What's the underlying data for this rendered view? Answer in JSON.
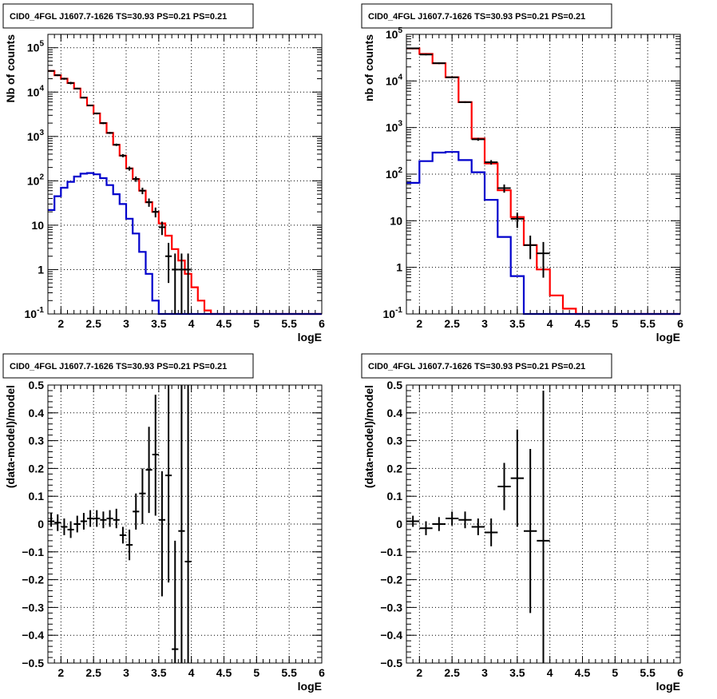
{
  "colors": {
    "data": "#000000",
    "total_model": "#ff0000",
    "source_model": "#0000cc",
    "grid": "#000000",
    "background": "#ffffff"
  },
  "chart_data": [
    {
      "type": "line",
      "title": "CID0_4FGL J1607.7-1626 TS=30.93 PS=0.21 PS=0.21",
      "xlabel": "logE",
      "ylabel": "Nb of counts",
      "xlim": [
        1.8,
        6
      ],
      "ylim": [
        0.1,
        200000
      ],
      "yscale": "log",
      "grid": true,
      "x_ticks": [
        2,
        2.5,
        3,
        3.5,
        4,
        4.5,
        5,
        5.5,
        6
      ],
      "x_tick_labels": [
        "2",
        "2.5",
        "3",
        "3.5",
        "4",
        "4.5",
        "5",
        "5.5",
        "6"
      ],
      "y_ticks": [
        0.1,
        1,
        10,
        100,
        1000,
        10000,
        100000
      ],
      "y_tick_labels": [
        "10^-1",
        "1",
        "10",
        "10^2",
        "10^3",
        "10^4",
        "10^5"
      ],
      "series": [
        {
          "role": "total_model",
          "kind": "step",
          "x_edges": [
            1.8,
            1.9,
            2.0,
            2.1,
            2.2,
            2.3,
            2.4,
            2.5,
            2.6,
            2.7,
            2.8,
            2.9,
            3.0,
            3.1,
            3.2,
            3.3,
            3.4,
            3.5,
            3.6,
            3.7,
            3.8,
            3.9,
            4.0,
            4.1,
            4.2,
            4.3,
            4.4,
            4.5,
            4.6,
            4.7,
            4.8,
            4.9,
            5.0,
            5.1,
            5.2,
            5.3,
            5.4,
            5.5,
            5.6,
            5.7,
            5.8,
            5.9,
            6.0
          ],
          "values": [
            30000,
            24000,
            20000,
            16000,
            12000,
            7500,
            5000,
            3300,
            2000,
            1200,
            650,
            370,
            190,
            110,
            60,
            33,
            20,
            11,
            5.8,
            2.9,
            1.6,
            0.8,
            0.4,
            0.2,
            0.12,
            0.1,
            0.1,
            0.1,
            0.1,
            0.1,
            0.1,
            0.1,
            0.1,
            0.1,
            0.1,
            0.1,
            0.1,
            0.1,
            0.1,
            0.1,
            0.1,
            0.1
          ]
        },
        {
          "role": "source_model",
          "kind": "step",
          "x_edges": [
            1.8,
            1.9,
            2.0,
            2.1,
            2.2,
            2.3,
            2.4,
            2.5,
            2.6,
            2.7,
            2.8,
            2.9,
            3.0,
            3.1,
            3.2,
            3.3,
            3.4,
            3.5,
            3.6,
            3.7,
            3.8,
            3.9,
            4.0,
            4.1,
            4.2,
            4.3,
            4.4,
            4.5,
            4.6,
            4.7,
            4.8,
            4.9,
            5.0,
            5.1,
            5.2,
            5.3,
            5.4,
            5.5,
            5.6,
            5.7,
            5.8,
            5.9,
            6.0
          ],
          "values": [
            22,
            45,
            70,
            95,
            125,
            145,
            150,
            140,
            115,
            80,
            50,
            30,
            14,
            6.5,
            2.5,
            0.8,
            0.2,
            0.1,
            0.1,
            0.1,
            0.1,
            0.1,
            0.1,
            0.1,
            0.1,
            0.1,
            0.1,
            0.1,
            0.1,
            0.1,
            0.1,
            0.1,
            0.1,
            0.1,
            0.1,
            0.1,
            0.1,
            0.1,
            0.1,
            0.1,
            0.1,
            0.1
          ]
        },
        {
          "role": "data",
          "kind": "errorbar",
          "points": [
            {
              "x": 1.85,
              "y": 30000,
              "xerr": 0.05,
              "ylo": 29000,
              "yhi": 31000
            },
            {
              "x": 1.95,
              "y": 24000,
              "xerr": 0.05,
              "ylo": 23000,
              "yhi": 25000
            },
            {
              "x": 2.05,
              "y": 20000,
              "xerr": 0.05,
              "ylo": 19000,
              "yhi": 21000
            },
            {
              "x": 2.15,
              "y": 16000,
              "xerr": 0.05,
              "ylo": 15000,
              "yhi": 17000
            },
            {
              "x": 2.25,
              "y": 12000,
              "xerr": 0.05,
              "ylo": 11500,
              "yhi": 12500
            },
            {
              "x": 2.35,
              "y": 7500,
              "xerr": 0.05,
              "ylo": 7200,
              "yhi": 7800
            },
            {
              "x": 2.45,
              "y": 5000,
              "xerr": 0.05,
              "ylo": 4800,
              "yhi": 5200
            },
            {
              "x": 2.55,
              "y": 3300,
              "xerr": 0.05,
              "ylo": 3150,
              "yhi": 3450
            },
            {
              "x": 2.65,
              "y": 2000,
              "xerr": 0.05,
              "ylo": 1900,
              "yhi": 2100
            },
            {
              "x": 2.75,
              "y": 1200,
              "xerr": 0.05,
              "ylo": 1140,
              "yhi": 1260
            },
            {
              "x": 2.85,
              "y": 650,
              "xerr": 0.05,
              "ylo": 610,
              "yhi": 690
            },
            {
              "x": 2.95,
              "y": 370,
              "xerr": 0.05,
              "ylo": 340,
              "yhi": 400
            },
            {
              "x": 3.05,
              "y": 190,
              "xerr": 0.05,
              "ylo": 170,
              "yhi": 210
            },
            {
              "x": 3.15,
              "y": 110,
              "xerr": 0.05,
              "ylo": 95,
              "yhi": 125
            },
            {
              "x": 3.25,
              "y": 60,
              "xerr": 0.05,
              "ylo": 50,
              "yhi": 70
            },
            {
              "x": 3.35,
              "y": 33,
              "xerr": 0.05,
              "ylo": 26,
              "yhi": 40
            },
            {
              "x": 3.45,
              "y": 20,
              "xerr": 0.05,
              "ylo": 15,
              "yhi": 25
            },
            {
              "x": 3.55,
              "y": 9,
              "xerr": 0.05,
              "ylo": 6,
              "yhi": 12
            },
            {
              "x": 3.65,
              "y": 2,
              "xerr": 0.05,
              "ylo": 0.5,
              "yhi": 4
            },
            {
              "x": 3.75,
              "y": 1,
              "xerr": 0.05,
              "ylo": 0.1,
              "yhi": 2.3
            },
            {
              "x": 3.85,
              "y": 1,
              "xerr": 0.05,
              "ylo": 0.1,
              "yhi": 2.3
            },
            {
              "x": 3.95,
              "y": 1,
              "xerr": 0.05,
              "ylo": 0.1,
              "yhi": 2.3
            }
          ]
        }
      ]
    },
    {
      "type": "line",
      "title": "CID0_4FGL J1607.7-1626 TS=30.93 PS=0.21 PS=0.21",
      "xlabel": "logE",
      "ylabel": "nb of counts",
      "xlim": [
        1.8,
        6
      ],
      "ylim": [
        0.1,
        100000
      ],
      "yscale": "log",
      "grid": true,
      "x_ticks": [
        2,
        2.5,
        3,
        3.5,
        4,
        4.5,
        5,
        5.5,
        6
      ],
      "x_tick_labels": [
        "2",
        "2.5",
        "3",
        "3.5",
        "4",
        "4.5",
        "5",
        "5.5",
        "6"
      ],
      "y_ticks": [
        0.1,
        1,
        10,
        100,
        1000,
        10000,
        100000
      ],
      "y_tick_labels": [
        "10^-1",
        "1",
        "10",
        "10^2",
        "10^3",
        "10^4",
        "10^5"
      ],
      "series": [
        {
          "role": "total_model",
          "kind": "step",
          "x_edges": [
            1.8,
            2.0,
            2.2,
            2.4,
            2.6,
            2.8,
            3.0,
            3.2,
            3.4,
            3.6,
            3.8,
            4.0,
            4.2,
            4.4,
            4.6,
            4.8,
            5.0,
            5.2,
            5.4,
            5.6,
            5.8,
            6.0
          ],
          "values": [
            50000,
            38000,
            24000,
            12000,
            3500,
            580,
            170,
            45,
            12,
            3,
            0.9,
            0.25,
            0.13,
            0.1,
            0.1,
            0.1,
            0.1,
            0.1,
            0.1,
            0.1,
            0.1
          ]
        },
        {
          "role": "source_model",
          "kind": "step",
          "x_edges": [
            1.8,
            2.0,
            2.2,
            2.4,
            2.6,
            2.8,
            3.0,
            3.2,
            3.4,
            3.6,
            3.8,
            4.0,
            4.2,
            4.4,
            4.6,
            4.8,
            5.0,
            5.2,
            5.4,
            5.6,
            5.8,
            6.0
          ],
          "values": [
            65,
            190,
            290,
            300,
            200,
            110,
            28,
            4.5,
            0.65,
            0.1,
            0.1,
            0.1,
            0.1,
            0.1,
            0.1,
            0.1,
            0.1,
            0.1,
            0.1,
            0.1,
            0.1
          ]
        },
        {
          "role": "data",
          "kind": "errorbar",
          "points": [
            {
              "x": 1.9,
              "y": 50000,
              "xerr": 0.1,
              "ylo": 48000,
              "yhi": 52000
            },
            {
              "x": 2.1,
              "y": 37000,
              "xerr": 0.1,
              "ylo": 35500,
              "yhi": 38500
            },
            {
              "x": 2.3,
              "y": 24000,
              "xerr": 0.1,
              "ylo": 23000,
              "yhi": 25000
            },
            {
              "x": 2.5,
              "y": 12000,
              "xerr": 0.1,
              "ylo": 11500,
              "yhi": 12500
            },
            {
              "x": 2.7,
              "y": 3500,
              "xerr": 0.1,
              "ylo": 3350,
              "yhi": 3650
            },
            {
              "x": 2.9,
              "y": 560,
              "xerr": 0.1,
              "ylo": 520,
              "yhi": 600
            },
            {
              "x": 3.1,
              "y": 180,
              "xerr": 0.1,
              "ylo": 160,
              "yhi": 200
            },
            {
              "x": 3.3,
              "y": 50,
              "xerr": 0.1,
              "ylo": 40,
              "yhi": 60
            },
            {
              "x": 3.5,
              "y": 11,
              "xerr": 0.1,
              "ylo": 7,
              "yhi": 15
            },
            {
              "x": 3.7,
              "y": 3,
              "xerr": 0.1,
              "ylo": 1.5,
              "yhi": 4.8
            },
            {
              "x": 3.9,
              "y": 2,
              "xerr": 0.1,
              "ylo": 0.6,
              "yhi": 3.5
            }
          ]
        }
      ]
    },
    {
      "type": "scatter",
      "title": "CID0_4FGL J1607.7-1626 TS=30.93 PS=0.21 PS=0.21",
      "xlabel": "logE",
      "ylabel": "(data-model)/model",
      "xlim": [
        1.8,
        6
      ],
      "ylim": [
        -0.5,
        0.5
      ],
      "grid": true,
      "x_ticks": [
        2,
        2.5,
        3,
        3.5,
        4,
        4.5,
        5,
        5.5,
        6
      ],
      "x_tick_labels": [
        "2",
        "2.5",
        "3",
        "3.5",
        "4",
        "4.5",
        "5",
        "5.5",
        "6"
      ],
      "y_ticks": [
        -0.5,
        -0.4,
        -0.3,
        -0.2,
        -0.1,
        0,
        0.1,
        0.2,
        0.3,
        0.4,
        0.5
      ],
      "y_tick_labels": [
        "−0.5",
        "−0.4",
        "−0.3",
        "−0.2",
        "−0.1",
        "0",
        "0.1",
        "0.2",
        "0.3",
        "0.4",
        "0.5"
      ],
      "series": [
        {
          "role": "data",
          "kind": "errorbar",
          "points": [
            {
              "x": 1.85,
              "y": 0.01,
              "xerr": 0.05,
              "ylo": -0.01,
              "yhi": 0.04
            },
            {
              "x": 1.95,
              "y": 0.005,
              "xerr": 0.05,
              "ylo": -0.025,
              "yhi": 0.035
            },
            {
              "x": 2.05,
              "y": -0.01,
              "xerr": 0.05,
              "ylo": -0.04,
              "yhi": 0.02
            },
            {
              "x": 2.15,
              "y": -0.02,
              "xerr": 0.05,
              "ylo": -0.05,
              "yhi": 0.01
            },
            {
              "x": 2.25,
              "y": 0.0,
              "xerr": 0.05,
              "ylo": -0.03,
              "yhi": 0.03
            },
            {
              "x": 2.35,
              "y": 0.01,
              "xerr": 0.05,
              "ylo": -0.02,
              "yhi": 0.04
            },
            {
              "x": 2.45,
              "y": 0.02,
              "xerr": 0.05,
              "ylo": -0.01,
              "yhi": 0.05
            },
            {
              "x": 2.55,
              "y": 0.02,
              "xerr": 0.05,
              "ylo": -0.01,
              "yhi": 0.05
            },
            {
              "x": 2.65,
              "y": 0.015,
              "xerr": 0.05,
              "ylo": -0.015,
              "yhi": 0.045
            },
            {
              "x": 2.75,
              "y": 0.02,
              "xerr": 0.05,
              "ylo": -0.01,
              "yhi": 0.05
            },
            {
              "x": 2.85,
              "y": 0.015,
              "xerr": 0.05,
              "ylo": -0.015,
              "yhi": 0.055
            },
            {
              "x": 2.95,
              "y": -0.04,
              "xerr": 0.05,
              "ylo": -0.07,
              "yhi": -0.01
            },
            {
              "x": 3.05,
              "y": -0.075,
              "xerr": 0.05,
              "ylo": -0.13,
              "yhi": -0.02
            },
            {
              "x": 3.15,
              "y": 0.045,
              "xerr": 0.05,
              "ylo": -0.02,
              "yhi": 0.11
            },
            {
              "x": 3.25,
              "y": 0.11,
              "xerr": 0.05,
              "ylo": 0.0,
              "yhi": 0.2
            },
            {
              "x": 3.35,
              "y": 0.195,
              "xerr": 0.05,
              "ylo": 0.04,
              "yhi": 0.35
            },
            {
              "x": 3.45,
              "y": 0.25,
              "xerr": 0.05,
              "ylo": 0.03,
              "yhi": 0.465
            },
            {
              "x": 3.55,
              "y": 0.015,
              "xerr": 0.05,
              "ylo": -0.26,
              "yhi": 0.19
            },
            {
              "x": 3.65,
              "y": 0.175,
              "xerr": 0.05,
              "ylo": -0.21,
              "yhi": 0.5
            },
            {
              "x": 3.75,
              "y": -0.45,
              "xerr": 0.05,
              "ylo": -0.5,
              "yhi": -0.06
            },
            {
              "x": 3.85,
              "y": -0.025,
              "xerr": 0.05,
              "ylo": -0.5,
              "yhi": 0.5
            },
            {
              "x": 3.95,
              "y": -0.135,
              "xerr": 0.05,
              "ylo": -0.5,
              "yhi": 0.5
            }
          ]
        }
      ]
    },
    {
      "type": "scatter",
      "title": "CID0_4FGL J1607.7-1626 TS=30.93 PS=0.21 PS=0.21",
      "xlabel": "logE",
      "ylabel": "(data-model)/model",
      "xlim": [
        1.8,
        6
      ],
      "ylim": [
        -0.5,
        0.5
      ],
      "grid": true,
      "x_ticks": [
        2,
        2.5,
        3,
        3.5,
        4,
        4.5,
        5,
        5.5,
        6
      ],
      "x_tick_labels": [
        "2",
        "2.5",
        "3",
        "3.5",
        "4",
        "4.5",
        "5",
        "5.5",
        "6"
      ],
      "y_ticks": [
        -0.5,
        -0.4,
        -0.3,
        -0.2,
        -0.1,
        0,
        0.1,
        0.2,
        0.3,
        0.4,
        0.5
      ],
      "y_tick_labels": [
        "−0.5",
        "−0.4",
        "−0.3",
        "−0.2",
        "−0.1",
        "0",
        "0.1",
        "0.2",
        "0.3",
        "0.4",
        "0.5"
      ],
      "series": [
        {
          "role": "data",
          "kind": "errorbar",
          "points": [
            {
              "x": 1.9,
              "y": 0.01,
              "xerr": 0.1,
              "ylo": -0.01,
              "yhi": 0.03
            },
            {
              "x": 2.1,
              "y": -0.015,
              "xerr": 0.1,
              "ylo": -0.04,
              "yhi": 0.01
            },
            {
              "x": 2.3,
              "y": 0.0,
              "xerr": 0.1,
              "ylo": -0.025,
              "yhi": 0.025
            },
            {
              "x": 2.5,
              "y": 0.02,
              "xerr": 0.1,
              "ylo": -0.005,
              "yhi": 0.045
            },
            {
              "x": 2.7,
              "y": 0.015,
              "xerr": 0.1,
              "ylo": -0.015,
              "yhi": 0.045
            },
            {
              "x": 2.9,
              "y": -0.01,
              "xerr": 0.1,
              "ylo": -0.04,
              "yhi": 0.02
            },
            {
              "x": 3.1,
              "y": -0.03,
              "xerr": 0.1,
              "ylo": -0.08,
              "yhi": 0.02
            },
            {
              "x": 3.3,
              "y": 0.135,
              "xerr": 0.1,
              "ylo": 0.05,
              "yhi": 0.22
            },
            {
              "x": 3.5,
              "y": 0.165,
              "xerr": 0.1,
              "ylo": -0.01,
              "yhi": 0.34
            },
            {
              "x": 3.7,
              "y": -0.025,
              "xerr": 0.1,
              "ylo": -0.32,
              "yhi": 0.27
            },
            {
              "x": 3.9,
              "y": -0.06,
              "xerr": 0.1,
              "ylo": -0.5,
              "yhi": 0.48
            }
          ]
        }
      ]
    }
  ]
}
